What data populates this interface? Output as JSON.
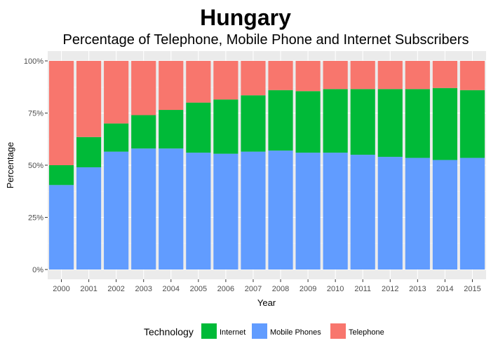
{
  "chart_data": {
    "type": "bar",
    "stacked": true,
    "title": "Hungary",
    "subtitle": "Percentage of Telephone, Mobile Phone and Internet Subscribers",
    "xlabel": "Year",
    "ylabel": "Percentage",
    "ylim": [
      0,
      1
    ],
    "yticks": [
      "0%",
      "25%",
      "50%",
      "75%",
      "100%"
    ],
    "categories": [
      "2000",
      "2001",
      "2002",
      "2003",
      "2004",
      "2005",
      "2006",
      "2007",
      "2008",
      "2009",
      "2010",
      "2011",
      "2012",
      "2013",
      "2014",
      "2015"
    ],
    "series": [
      {
        "name": "Mobile Phones",
        "color": "#619CFF",
        "values": [
          0.405,
          0.49,
          0.565,
          0.58,
          0.58,
          0.56,
          0.555,
          0.565,
          0.57,
          0.56,
          0.56,
          0.55,
          0.54,
          0.535,
          0.525,
          0.535
        ]
      },
      {
        "name": "Internet",
        "color": "#00BA38",
        "values": [
          0.095,
          0.145,
          0.135,
          0.16,
          0.185,
          0.24,
          0.26,
          0.27,
          0.29,
          0.295,
          0.305,
          0.315,
          0.325,
          0.33,
          0.345,
          0.325
        ]
      },
      {
        "name": "Telephone",
        "color": "#F8766D",
        "values": [
          0.5,
          0.365,
          0.3,
          0.26,
          0.235,
          0.2,
          0.185,
          0.165,
          0.14,
          0.145,
          0.135,
          0.135,
          0.135,
          0.135,
          0.13,
          0.14
        ]
      }
    ],
    "legend": {
      "title": "Technology",
      "position": "bottom",
      "items": [
        "Internet",
        "Mobile Phones",
        "Telephone"
      ]
    },
    "grid": true,
    "panel_background": "#EBEBEB"
  }
}
